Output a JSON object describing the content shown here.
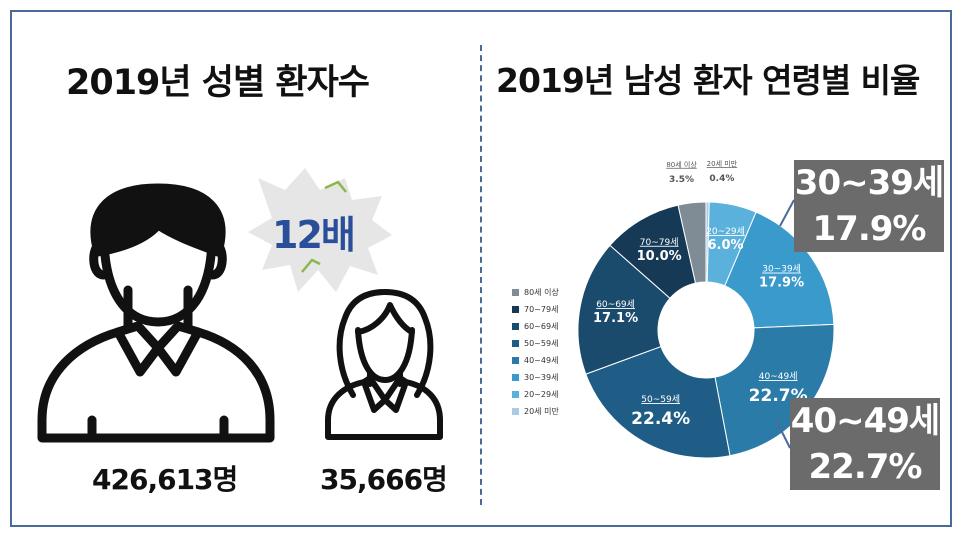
{
  "left_panel": {
    "title": "2019년 성별 환자수",
    "ratio_label": "12배",
    "male_count": "426,613명",
    "female_count": "35,666명"
  },
  "right_panel": {
    "title": "2019년 남성 환자 연령별 비율"
  },
  "callouts": {
    "c30_label": "30~39세",
    "c30_value": "17.9%",
    "c40_label": "40~49세",
    "c40_value": "22.7%"
  },
  "colors": {
    "border": "#4a6a9a",
    "callout_bg": "#6b6b6b",
    "ratio_text": "#2b4e9a"
  },
  "chart_data": {
    "type": "donut",
    "title": "2019년 남성 환자 연령별 비율",
    "slices": [
      {
        "label": "20세 미만",
        "value": 0.4,
        "display": "0.4%",
        "color": "#a8cce4"
      },
      {
        "label": "20~29세",
        "value": 6.0,
        "display": "6.0%",
        "color": "#5ab1dc"
      },
      {
        "label": "30~39세",
        "value": 17.9,
        "display": "17.9%",
        "color": "#3a9acb"
      },
      {
        "label": "40~49세",
        "value": 22.7,
        "display": "22.7%",
        "color": "#2b7ba8"
      },
      {
        "label": "50~59세",
        "value": 22.4,
        "display": "22.4%",
        "color": "#1f5d86"
      },
      {
        "label": "60~69세",
        "value": 17.1,
        "display": "17.1%",
        "color": "#1a4a6c"
      },
      {
        "label": "70~79세",
        "value": 10.0,
        "display": "10.0%",
        "color": "#163a55"
      },
      {
        "label": "80세 이상",
        "value": 3.5,
        "display": "3.5%",
        "color": "#7f8c95"
      }
    ],
    "legend": [
      "80세 이상",
      "70~79세",
      "60~69세",
      "50~59세",
      "40~49세",
      "30~39세",
      "20~29세",
      "20세 미만"
    ],
    "legend_position": "left"
  }
}
